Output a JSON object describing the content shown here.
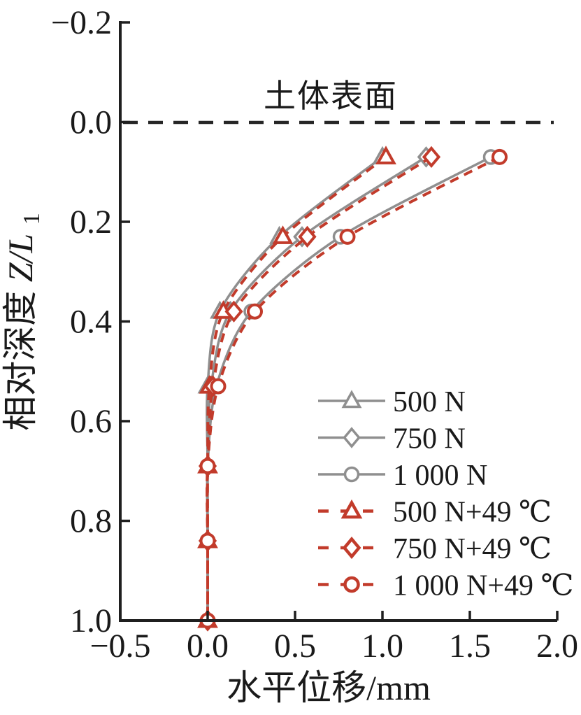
{
  "figure": {
    "surface_label": "土体表面",
    "xlabel": "水平位移/mm",
    "ylabel_prefix": "相对深度",
    "ylabel_var": "Z/L",
    "ylabel_sub": "1"
  },
  "colors": {
    "axis": "#1f1f1f",
    "text": "#1a1a1a",
    "gray_series": "#8f8f8f",
    "red_series": "#c23b2b",
    "surface_line": "#262626",
    "background": "#ffffff"
  },
  "chart_data": {
    "type": "line",
    "title": "",
    "xlabel": "水平位移/mm",
    "ylabel": "相对深度Z/L1",
    "xlim": [
      -0.5,
      2.0
    ],
    "ylim": [
      -0.2,
      1.0
    ],
    "y_axis_inverted": true,
    "grid": false,
    "legend_position": "center-right",
    "surface_annotation": {
      "label": "土体表面",
      "y": 0.0,
      "style": "black dashed horizontal line"
    },
    "x_ticks": [
      {
        "v": -0.5,
        "label": "−0.5"
      },
      {
        "v": 0.0,
        "label": "0.0"
      },
      {
        "v": 0.5,
        "label": "0.5"
      },
      {
        "v": 1.0,
        "label": "1.0"
      },
      {
        "v": 1.5,
        "label": "1.5"
      },
      {
        "v": 2.0,
        "label": "2.0"
      }
    ],
    "y_ticks": [
      {
        "v": -0.2,
        "label": "−0.2"
      },
      {
        "v": 0.0,
        "label": "0.0"
      },
      {
        "v": 0.2,
        "label": "0.2"
      },
      {
        "v": 0.4,
        "label": "0.4"
      },
      {
        "v": 0.6,
        "label": "0.6"
      },
      {
        "v": 0.8,
        "label": "0.8"
      },
      {
        "v": 1.0,
        "label": "1.0"
      }
    ],
    "x": [
      0.07,
      0.23,
      0.38,
      0.53,
      0.69,
      0.84,
      1.0
    ],
    "x_is_depth_ZL1": true,
    "series": [
      {
        "name": "500 N",
        "color": "#8f8f8f",
        "line": "solid",
        "marker": "triangle",
        "values": [
          1.0,
          0.41,
          0.07,
          0.0,
          0.0,
          0.0,
          0.0
        ]
      },
      {
        "name": "750 N",
        "color": "#8f8f8f",
        "line": "solid",
        "marker": "diamond",
        "values": [
          1.25,
          0.54,
          0.13,
          0.02,
          0.0,
          0.0,
          0.0
        ]
      },
      {
        "name": "1 000 N",
        "color": "#8f8f8f",
        "line": "solid",
        "marker": "circle",
        "values": [
          1.62,
          0.76,
          0.25,
          0.05,
          0.0,
          0.0,
          0.0
        ]
      },
      {
        "name": "500 N+49 ℃",
        "color": "#c23b2b",
        "line": "dashed",
        "marker": "triangle",
        "values": [
          1.02,
          0.43,
          0.09,
          0.01,
          0.0,
          0.0,
          0.0
        ]
      },
      {
        "name": "750 N+49 ℃",
        "color": "#c23b2b",
        "line": "dashed",
        "marker": "diamond",
        "values": [
          1.28,
          0.57,
          0.15,
          0.03,
          0.0,
          0.0,
          0.0
        ]
      },
      {
        "name": "1 000 N+49 ℃",
        "color": "#c23b2b",
        "line": "dashed",
        "marker": "circle",
        "values": [
          1.67,
          0.8,
          0.27,
          0.06,
          0.0,
          0.0,
          0.0
        ]
      }
    ]
  }
}
